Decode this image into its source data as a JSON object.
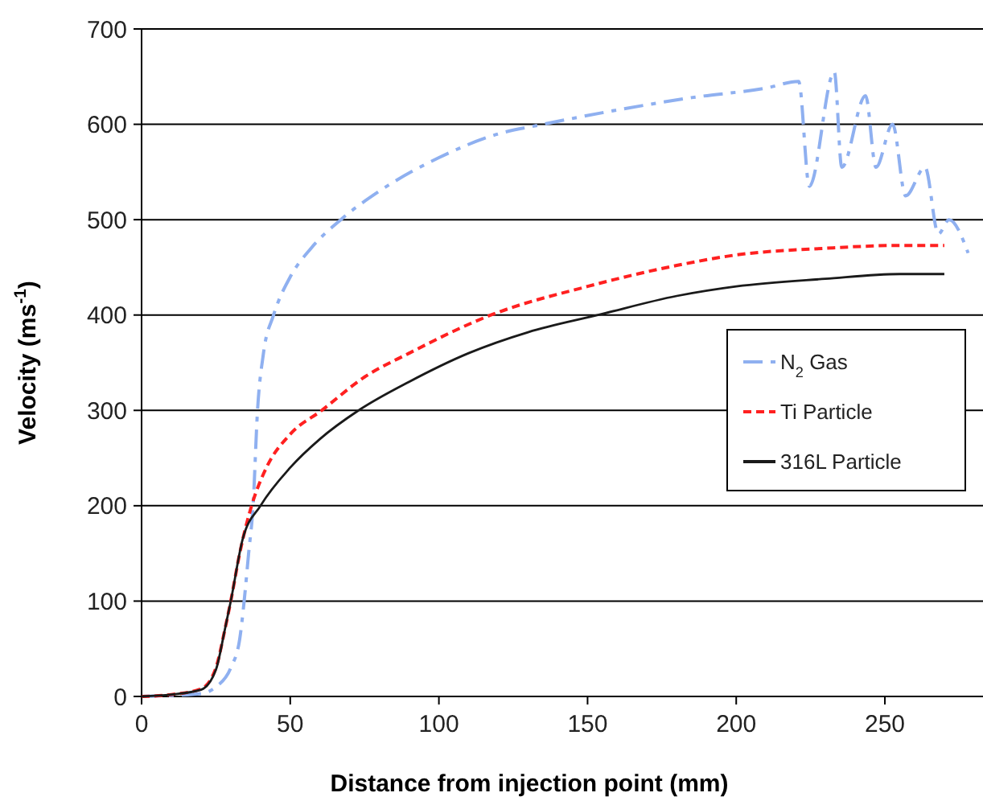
{
  "chart_data": {
    "type": "line",
    "xlabel": "Distance from injection point (mm)",
    "ylabel": "Velocity (ms$^{-1}$)",
    "xlim": [
      0,
      283
    ],
    "ylim": [
      0,
      700
    ],
    "xticks": [
      0,
      50,
      100,
      150,
      200,
      250
    ],
    "yticks": [
      0,
      100,
      200,
      300,
      400,
      500,
      600,
      700
    ],
    "grid": "y",
    "legend": "right",
    "series": [
      {
        "name": "N$_{2}$ Gas",
        "color": "#8fb0f0",
        "line_style": "dashdot",
        "x": [
          0,
          10,
          20,
          25,
          30,
          33,
          34.5,
          36,
          37.5,
          39,
          41,
          44.4,
          50,
          57,
          67,
          80,
          100,
          120,
          135,
          160,
          185,
          210,
          221,
          224.6,
          233,
          235.5,
          243.5,
          247,
          252.6,
          257,
          263.5,
          268,
          271.6,
          278
        ],
        "values": [
          0,
          1,
          3,
          10,
          30,
          60,
          100,
          150,
          200,
          300,
          360,
          400,
          440,
          470,
          500,
          530,
          565,
          590,
          600,
          615,
          628,
          638,
          645,
          535,
          655,
          555,
          630,
          555,
          600,
          525,
          555,
          485,
          500,
          465
        ]
      },
      {
        "name": "Ti Particle",
        "color": "#ff2020",
        "line_style": "dashed",
        "x": [
          0,
          10,
          20,
          25,
          28,
          30,
          33,
          37,
          42,
          50,
          60.6,
          75,
          90,
          117.5,
          150,
          180,
          200,
          230,
          255,
          270
        ],
        "values": [
          0,
          2,
          8,
          30,
          70,
          100,
          150,
          200,
          240,
          275,
          300,
          335,
          360,
          400,
          430,
          452,
          463,
          470,
          473,
          473
        ]
      },
      {
        "name": "316L Particle",
        "color": "#1a1a1a",
        "line_style": "solid",
        "x": [
          0,
          10,
          20,
          25,
          28,
          30,
          34,
          40,
          50,
          60,
          73,
          90,
          110,
          130,
          153.5,
          180,
          200,
          230,
          255,
          270
        ],
        "values": [
          0,
          2,
          7,
          28,
          70,
          100,
          165,
          200,
          240,
          270,
          300,
          330,
          360,
          382,
          400,
          420,
          430,
          438,
          443,
          443
        ]
      }
    ]
  }
}
